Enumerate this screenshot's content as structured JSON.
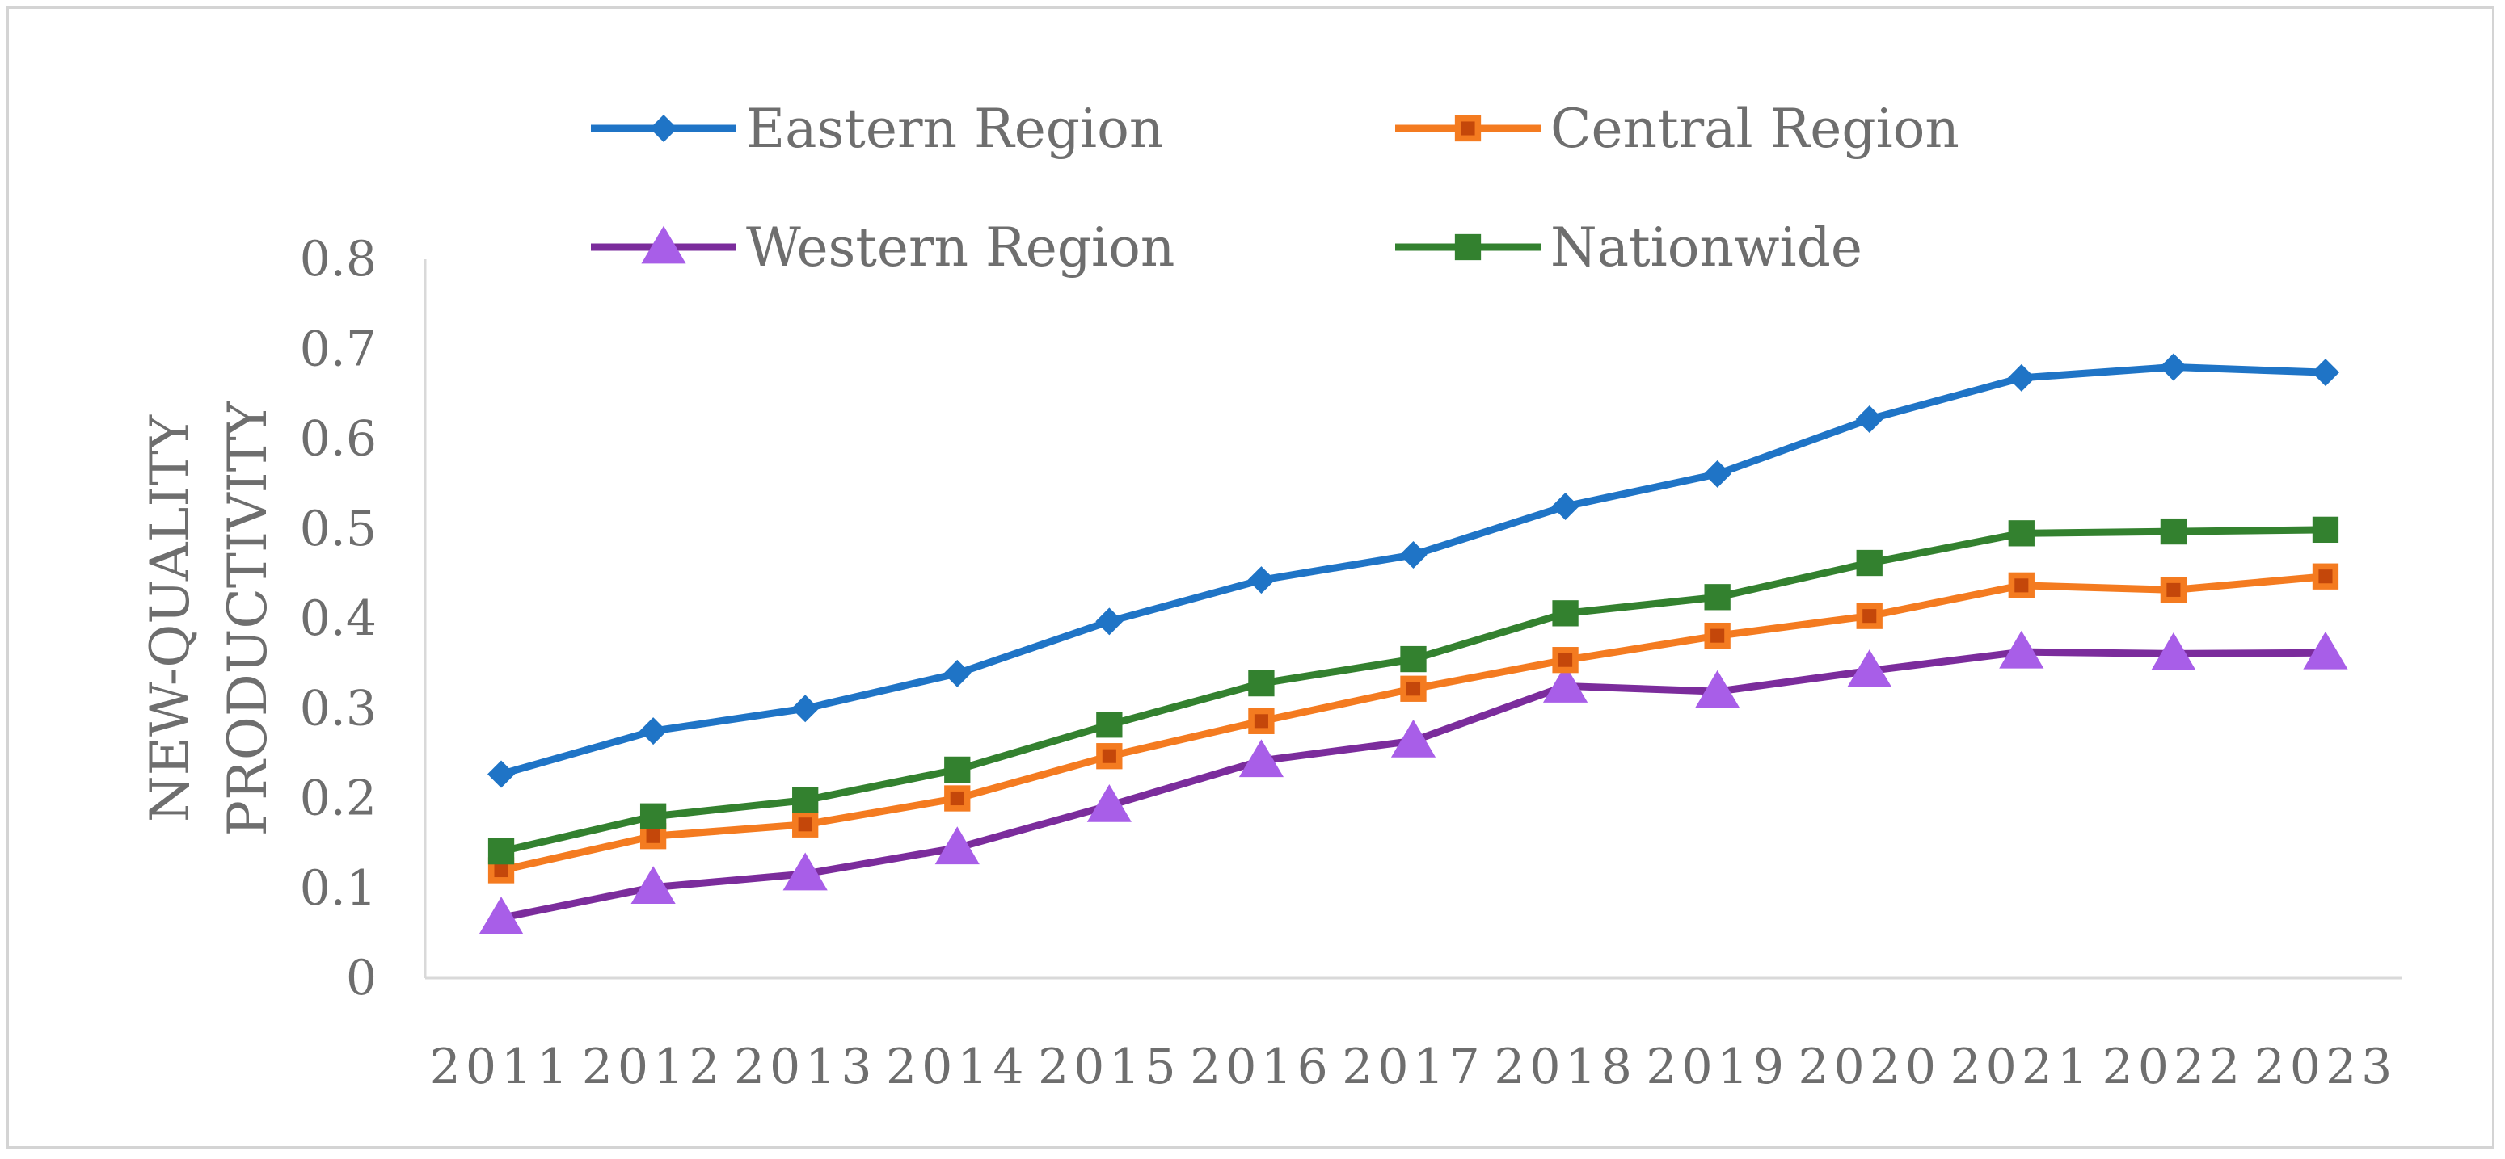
{
  "chart_data": {
    "type": "line",
    "title": "",
    "xlabel": "",
    "ylabel_lines": [
      "NEW-QUALITY",
      "PRODUCTIVITY"
    ],
    "categories": [
      "2011",
      "2012",
      "2013",
      "2014",
      "2015",
      "2016",
      "2017",
      "2018",
      "2019",
      "2020",
      "2021",
      "2022",
      "2023"
    ],
    "ylim": [
      0,
      0.8
    ],
    "yticks": [
      "0",
      "0.1",
      "0.2",
      "0.3",
      "0.4",
      "0.5",
      "0.6",
      "0.7",
      "0.8"
    ],
    "grid": false,
    "legend_position": "top",
    "series": [
      {
        "name": "Eastern Region",
        "color": "#1f74c6",
        "marker": "diamond",
        "values": [
          0.227,
          0.275,
          0.3,
          0.339,
          0.397,
          0.443,
          0.471,
          0.525,
          0.561,
          0.622,
          0.668,
          0.68,
          0.674
        ]
      },
      {
        "name": "Central Region",
        "color": "#f47b20",
        "marker": "square",
        "values": [
          0.12,
          0.158,
          0.171,
          0.2,
          0.247,
          0.286,
          0.322,
          0.354,
          0.381,
          0.403,
          0.437,
          0.432,
          0.447
        ]
      },
      {
        "name": "Western Region",
        "color": "#7b2c9c",
        "marker": "triangle",
        "marker_color": "#a85ee8",
        "values": [
          0.067,
          0.101,
          0.116,
          0.145,
          0.192,
          0.242,
          0.264,
          0.325,
          0.319,
          0.342,
          0.363,
          0.361,
          0.362
        ]
      },
      {
        "name": "Nationwide",
        "color": "#33812f",
        "marker": "square",
        "values": [
          0.141,
          0.18,
          0.198,
          0.232,
          0.282,
          0.328,
          0.355,
          0.406,
          0.424,
          0.462,
          0.495,
          0.497,
          0.499
        ]
      }
    ]
  }
}
